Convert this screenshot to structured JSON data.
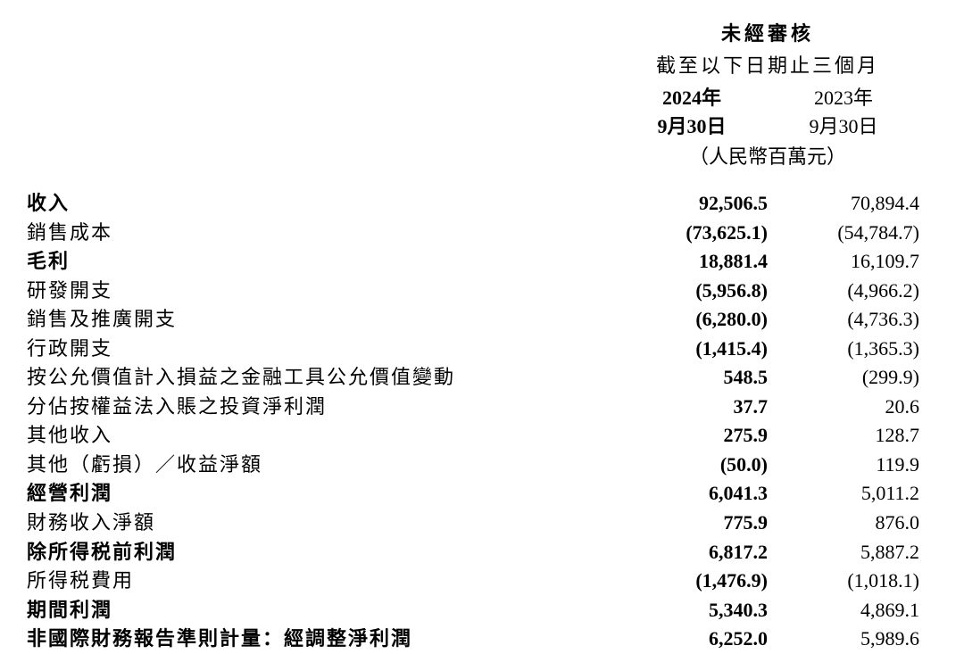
{
  "header": {
    "title": "未經審核",
    "subtitle": "截至以下日期止三個月",
    "year1": "2024年",
    "year2": "2023年",
    "date1": "9月30日",
    "date2": "9月30日",
    "unit": "（人民幣百萬元）"
  },
  "rows": [
    {
      "label": "收入",
      "bold": true,
      "v1": "92,506.5",
      "v2": "70,894.4"
    },
    {
      "label": "銷售成本",
      "bold": false,
      "v1": "(73,625.1)",
      "v2": "(54,784.7)"
    },
    {
      "label": "毛利",
      "bold": true,
      "v1": "18,881.4",
      "v2": "16,109.7"
    },
    {
      "label": "研發開支",
      "bold": false,
      "v1": "(5,956.8)",
      "v2": "(4,966.2)"
    },
    {
      "label": "銷售及推廣開支",
      "bold": false,
      "v1": "(6,280.0)",
      "v2": "(4,736.3)"
    },
    {
      "label": "行政開支",
      "bold": false,
      "v1": "(1,415.4)",
      "v2": "(1,365.3)"
    },
    {
      "label": "按公允價值計入損益之金融工具公允價值變動",
      "bold": false,
      "v1": "548.5",
      "v2": "(299.9)"
    },
    {
      "label": "分佔按權益法入賬之投資淨利潤",
      "bold": false,
      "v1": "37.7",
      "v2": "20.6"
    },
    {
      "label": "其他收入",
      "bold": false,
      "v1": "275.9",
      "v2": "128.7"
    },
    {
      "label": "其他（虧損）／收益淨額",
      "bold": false,
      "v1": "(50.0)",
      "v2": "119.9"
    },
    {
      "label": "經營利潤",
      "bold": true,
      "v1": "6,041.3",
      "v2": "5,011.2"
    },
    {
      "label": "財務收入淨額",
      "bold": false,
      "v1": "775.9",
      "v2": "876.0"
    },
    {
      "label": "除所得税前利潤",
      "bold": true,
      "v1": "6,817.2",
      "v2": "5,887.2"
    },
    {
      "label": "所得税費用",
      "bold": false,
      "v1": "(1,476.9)",
      "v2": "(1,018.1)"
    },
    {
      "label": "期間利潤",
      "bold": true,
      "v1": "5,340.3",
      "v2": "4,869.1"
    },
    {
      "label": "非國際財務報告準則計量：經調整淨利潤",
      "bold": true,
      "v1": "6,252.0",
      "v2": "5,989.6"
    }
  ]
}
